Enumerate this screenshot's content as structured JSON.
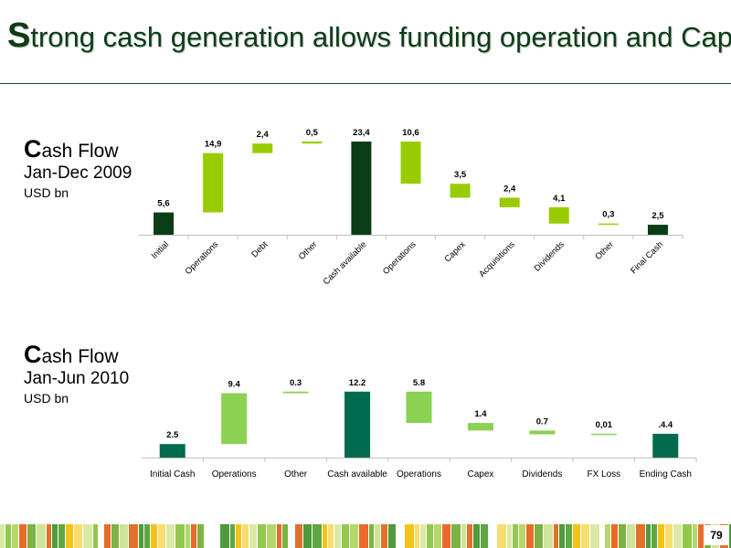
{
  "title": {
    "first_letter": "S",
    "rest": "trong cash generation allows funding operation and Capex"
  },
  "panels": [
    {
      "title_first": "C",
      "title_rest": "ash Flow",
      "period": "Jan-Dec 2009",
      "unit": "USD bn"
    },
    {
      "title_first": "C",
      "title_rest": "ash Flow",
      "period": "Jan-Jun 2010",
      "unit": "USD bn"
    }
  ],
  "page_number": "79",
  "colors": {
    "title": "#0b3d16",
    "light_green": "#99cc00",
    "dark_green_2009": "#0b3d16",
    "light_green_2010": "#8bd152",
    "dark_green_2010": "#006b4e",
    "axis": "#c0c0c0"
  },
  "chart_data": [
    {
      "type": "waterfall",
      "title": "",
      "categories": [
        "Initial",
        "Operations",
        "Debt",
        "Other",
        "Cash available",
        "Operations",
        "Capex",
        "Acquisitions",
        "Dividends",
        "Other",
        "Final Cash"
      ],
      "values": [
        5.6,
        14.9,
        2.4,
        0.5,
        23.4,
        -10.6,
        -3.5,
        -2.4,
        -4.1,
        -0.3,
        2.5
      ],
      "kinds": [
        "total",
        "increase",
        "increase",
        "increase",
        "total",
        "decrease",
        "decrease",
        "decrease",
        "decrease",
        "decrease",
        "total"
      ],
      "data_labels": [
        "5,6",
        "14,9",
        "2,4",
        "0,5",
        "23,4",
        "10,6",
        "3,5",
        "2,4",
        "4,1",
        "0,3",
        "2,5"
      ],
      "label_rotation": -45,
      "ylim": [
        0,
        25
      ]
    },
    {
      "type": "waterfall",
      "title": "",
      "categories": [
        "Initial Cash",
        "Operations",
        "Other",
        "Cash available",
        "Operations",
        "Capex",
        "Dividends",
        "FX Loss",
        "Ending Cash"
      ],
      "values": [
        2.5,
        9.4,
        0.3,
        12.2,
        -5.8,
        -1.4,
        -0.7,
        -0.01,
        4.4
      ],
      "kinds": [
        "total",
        "increase",
        "increase",
        "total",
        "decrease",
        "decrease",
        "decrease",
        "decrease",
        "total"
      ],
      "data_labels": [
        "2.5",
        "9.4",
        "0.3",
        "12.2",
        "5.8",
        "1.4",
        "0.7",
        "0,01",
        ".4.4"
      ],
      "label_rotation": 0,
      "ylim": [
        0,
        12.5
      ]
    }
  ]
}
